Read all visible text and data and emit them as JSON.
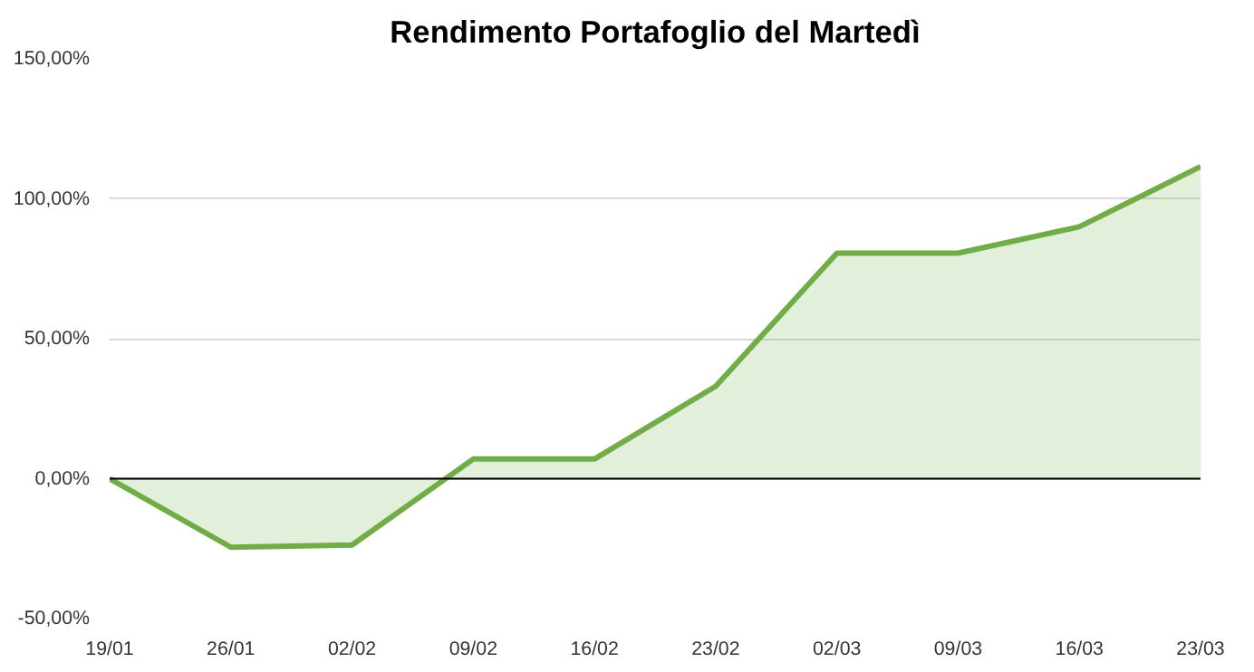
{
  "chart_data": {
    "type": "area",
    "title": "Rendimento Portafoglio del Martedì",
    "categories": [
      "19/01",
      "26/01",
      "02/02",
      "09/02",
      "16/02",
      "23/02",
      "02/03",
      "09/03",
      "16/03",
      "23/03"
    ],
    "series": [
      {
        "color": "#70ad47",
        "values": [
          0,
          -24.5,
          -23.7,
          7,
          7,
          33,
          80.6,
          80.6,
          90,
          111.5
        ]
      }
    ],
    "ylim": [
      -50,
      150
    ],
    "yticks": [
      {
        "value": -50,
        "label": "-50,00%"
      },
      {
        "value": 0,
        "label": "0,00%"
      },
      {
        "value": 50,
        "label": "50,00%"
      },
      {
        "value": 100,
        "label": "100,00%"
      },
      {
        "value": 150,
        "label": "150,00%"
      }
    ],
    "ref_lines": [
      {
        "axis": "y",
        "value": 0,
        "color": "#000000"
      }
    ],
    "grid": "y"
  }
}
